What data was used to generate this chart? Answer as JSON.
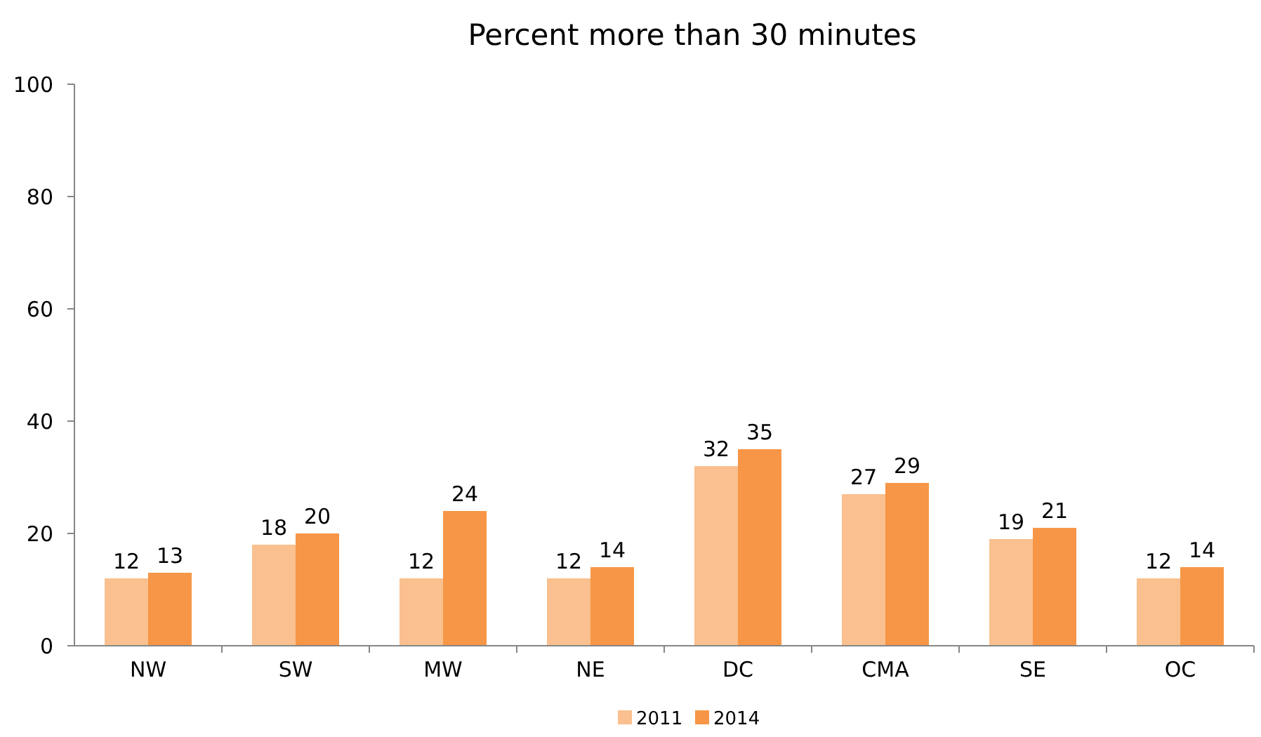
{
  "chart_data": {
    "type": "bar",
    "title": "Percent more than 30 minutes",
    "categories": [
      "NW",
      "SW",
      "MW",
      "NE",
      "DC",
      "CMA",
      "SE",
      "OC"
    ],
    "series": [
      {
        "name": "2011",
        "color": "#fac08f",
        "values": [
          12,
          18,
          12,
          12,
          32,
          27,
          19,
          12
        ]
      },
      {
        "name": "2014",
        "color": "#f79646",
        "values": [
          13,
          20,
          24,
          14,
          35,
          29,
          21,
          14
        ]
      }
    ],
    "ylim": [
      0,
      100
    ],
    "yticks": [
      0,
      20,
      40,
      60,
      80,
      100
    ],
    "grid": false,
    "legend": "bottom",
    "data_labels": true
  }
}
